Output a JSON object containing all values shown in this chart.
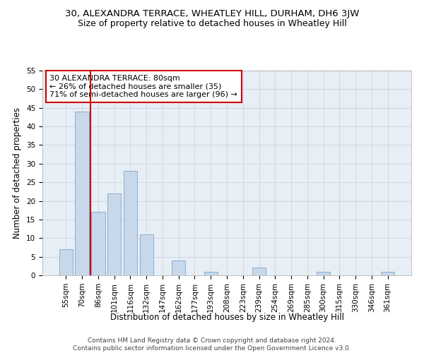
{
  "title": "30, ALEXANDRA TERRACE, WHEATLEY HILL, DURHAM, DH6 3JW",
  "subtitle": "Size of property relative to detached houses in Wheatley Hill",
  "xlabel": "Distribution of detached houses by size in Wheatley Hill",
  "ylabel": "Number of detached properties",
  "categories": [
    "55sqm",
    "70sqm",
    "86sqm",
    "101sqm",
    "116sqm",
    "132sqm",
    "147sqm",
    "162sqm",
    "177sqm",
    "193sqm",
    "208sqm",
    "223sqm",
    "239sqm",
    "254sqm",
    "269sqm",
    "285sqm",
    "300sqm",
    "315sqm",
    "330sqm",
    "346sqm",
    "361sqm"
  ],
  "values": [
    7,
    44,
    17,
    22,
    28,
    11,
    0,
    4,
    0,
    1,
    0,
    0,
    2,
    0,
    0,
    0,
    1,
    0,
    0,
    0,
    1
  ],
  "bar_color": "#c8d8ea",
  "bar_edge_color": "#7aa8cc",
  "vline_color": "#cc0000",
  "vline_x": 1.5,
  "ylim": [
    0,
    55
  ],
  "yticks": [
    0,
    5,
    10,
    15,
    20,
    25,
    30,
    35,
    40,
    45,
    50,
    55
  ],
  "annotation_text": "30 ALEXANDRA TERRACE: 80sqm\n← 26% of detached houses are smaller (35)\n71% of semi-detached houses are larger (96) →",
  "annotation_box_color": "#ffffff",
  "annotation_box_edge": "#cc0000",
  "footer_line1": "Contains HM Land Registry data © Crown copyright and database right 2024.",
  "footer_line2": "Contains public sector information licensed under the Open Government Licence v3.0.",
  "title_fontsize": 9.5,
  "subtitle_fontsize": 9,
  "xlabel_fontsize": 8.5,
  "ylabel_fontsize": 8.5,
  "tick_fontsize": 7.5,
  "annotation_fontsize": 8,
  "footer_fontsize": 6.5,
  "bg_color": "#e8eef5",
  "grid_color": "#c5cdd8"
}
